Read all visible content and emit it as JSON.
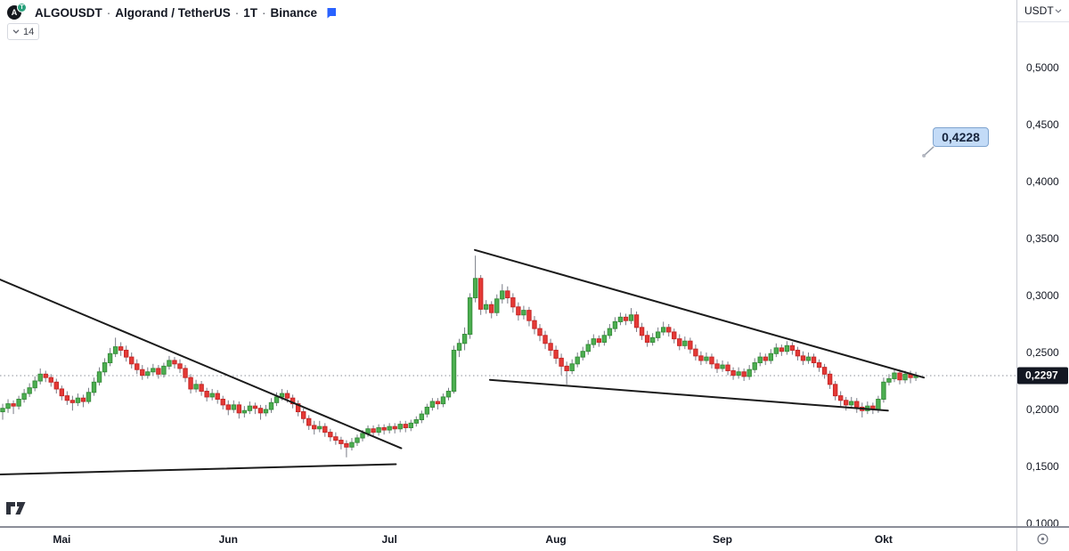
{
  "header": {
    "symbol": "ALGOUSDT",
    "separator": "·",
    "name": "Algorand / TetherUS",
    "interval": "1T",
    "exchange": "Binance",
    "indicator_chip_value": "14",
    "logo_base_letter": "A",
    "logo_badge_letter": "T"
  },
  "price_axis": {
    "currency_button": "USDT",
    "ticks": [
      {
        "label": "0,5000",
        "value": 0.5
      },
      {
        "label": "0,4500",
        "value": 0.45
      },
      {
        "label": "0,4000",
        "value": 0.4
      },
      {
        "label": "0,3500",
        "value": 0.35
      },
      {
        "label": "0,3000",
        "value": 0.3
      },
      {
        "label": "0,2500",
        "value": 0.25
      },
      {
        "label": "0,2000",
        "value": 0.2
      },
      {
        "label": "0,1500",
        "value": 0.15
      },
      {
        "label": "0,1000",
        "value": 0.1
      }
    ],
    "last_price": {
      "label": "0,2297",
      "value": 0.2297
    }
  },
  "time_axis": {
    "months": [
      {
        "label": "Mai",
        "index": 11
      },
      {
        "label": "Jun",
        "index": 42
      },
      {
        "label": "Jul",
        "index": 72
      },
      {
        "label": "Aug",
        "index": 103
      },
      {
        "label": "Sep",
        "index": 134
      },
      {
        "label": "Okt",
        "index": 164
      }
    ]
  },
  "callout": {
    "label": "0,4228",
    "value": 0.4228,
    "anchor_index": 171.5
  },
  "colors": {
    "up_fill": "#4caf50",
    "up_border": "#388e3c",
    "down_fill": "#e53935",
    "down_border": "#c62828",
    "wick": "#787b86",
    "trendline": "#1b1b1b",
    "dotted_line": "#8b8f99",
    "accent_flag": "#2962ff",
    "last_price_bg": "#131722",
    "callout_bg": "#c3dbf7"
  },
  "chart_data": {
    "type": "candlestick",
    "title": "ALGOUSDT · Algorand / TetherUS · 1T · Binance",
    "interval": "1T (daily)",
    "visible_price_range": [
      0.098,
      0.559
    ],
    "grid": false,
    "last_close": 0.2297,
    "dotted_price_line": 0.2297,
    "candles": [
      [
        0.198,
        0.205,
        0.191,
        0.201
      ],
      [
        0.201,
        0.209,
        0.197,
        0.205
      ],
      [
        0.205,
        0.208,
        0.196,
        0.203
      ],
      [
        0.203,
        0.212,
        0.2,
        0.209
      ],
      [
        0.209,
        0.218,
        0.206,
        0.214
      ],
      [
        0.214,
        0.223,
        0.211,
        0.219
      ],
      [
        0.219,
        0.229,
        0.216,
        0.225
      ],
      [
        0.225,
        0.236,
        0.222,
        0.231
      ],
      [
        0.231,
        0.234,
        0.224,
        0.228
      ],
      [
        0.228,
        0.231,
        0.22,
        0.224
      ],
      [
        0.224,
        0.227,
        0.214,
        0.218
      ],
      [
        0.218,
        0.221,
        0.208,
        0.212
      ],
      [
        0.212,
        0.216,
        0.204,
        0.208
      ],
      [
        0.208,
        0.212,
        0.199,
        0.206
      ],
      [
        0.206,
        0.214,
        0.203,
        0.21
      ],
      [
        0.21,
        0.213,
        0.202,
        0.207
      ],
      [
        0.207,
        0.219,
        0.205,
        0.215
      ],
      [
        0.215,
        0.228,
        0.212,
        0.224
      ],
      [
        0.224,
        0.237,
        0.221,
        0.233
      ],
      [
        0.233,
        0.245,
        0.23,
        0.241
      ],
      [
        0.241,
        0.254,
        0.238,
        0.249
      ],
      [
        0.249,
        0.263,
        0.246,
        0.255
      ],
      [
        0.255,
        0.259,
        0.247,
        0.252
      ],
      [
        0.252,
        0.256,
        0.242,
        0.246
      ],
      [
        0.246,
        0.25,
        0.236,
        0.24
      ],
      [
        0.24,
        0.244,
        0.231,
        0.235
      ],
      [
        0.235,
        0.239,
        0.226,
        0.23
      ],
      [
        0.23,
        0.237,
        0.227,
        0.233
      ],
      [
        0.233,
        0.24,
        0.23,
        0.236
      ],
      [
        0.236,
        0.239,
        0.227,
        0.231
      ],
      [
        0.231,
        0.241,
        0.228,
        0.238
      ],
      [
        0.238,
        0.247,
        0.235,
        0.243
      ],
      [
        0.243,
        0.246,
        0.236,
        0.24
      ],
      [
        0.24,
        0.244,
        0.232,
        0.236
      ],
      [
        0.236,
        0.239,
        0.224,
        0.228
      ],
      [
        0.228,
        0.231,
        0.214,
        0.218
      ],
      [
        0.218,
        0.226,
        0.215,
        0.222
      ],
      [
        0.222,
        0.225,
        0.212,
        0.216
      ],
      [
        0.216,
        0.219,
        0.207,
        0.211
      ],
      [
        0.211,
        0.218,
        0.208,
        0.214
      ],
      [
        0.214,
        0.217,
        0.205,
        0.209
      ],
      [
        0.209,
        0.212,
        0.2,
        0.204
      ],
      [
        0.204,
        0.208,
        0.195,
        0.2
      ],
      [
        0.2,
        0.208,
        0.197,
        0.204
      ],
      [
        0.204,
        0.207,
        0.192,
        0.197
      ],
      [
        0.197,
        0.203,
        0.193,
        0.199
      ],
      [
        0.199,
        0.207,
        0.196,
        0.203
      ],
      [
        0.203,
        0.206,
        0.196,
        0.201
      ],
      [
        0.201,
        0.204,
        0.191,
        0.197
      ],
      [
        0.197,
        0.204,
        0.194,
        0.2
      ],
      [
        0.2,
        0.21,
        0.197,
        0.206
      ],
      [
        0.206,
        0.215,
        0.203,
        0.211
      ],
      [
        0.211,
        0.218,
        0.208,
        0.214
      ],
      [
        0.214,
        0.217,
        0.206,
        0.21
      ],
      [
        0.21,
        0.213,
        0.201,
        0.205
      ],
      [
        0.205,
        0.208,
        0.194,
        0.198
      ],
      [
        0.198,
        0.201,
        0.188,
        0.192
      ],
      [
        0.192,
        0.195,
        0.182,
        0.186
      ],
      [
        0.186,
        0.19,
        0.178,
        0.183
      ],
      [
        0.183,
        0.19,
        0.18,
        0.185
      ],
      [
        0.185,
        0.188,
        0.176,
        0.18
      ],
      [
        0.18,
        0.183,
        0.172,
        0.176
      ],
      [
        0.176,
        0.18,
        0.169,
        0.173
      ],
      [
        0.173,
        0.176,
        0.165,
        0.17
      ],
      [
        0.17,
        0.173,
        0.158,
        0.167
      ],
      [
        0.167,
        0.175,
        0.164,
        0.171
      ],
      [
        0.171,
        0.178,
        0.168,
        0.175
      ],
      [
        0.175,
        0.182,
        0.172,
        0.179
      ],
      [
        0.179,
        0.186,
        0.176,
        0.183
      ],
      [
        0.183,
        0.186,
        0.176,
        0.18
      ],
      [
        0.18,
        0.187,
        0.177,
        0.184
      ],
      [
        0.184,
        0.187,
        0.178,
        0.182
      ],
      [
        0.182,
        0.188,
        0.179,
        0.185
      ],
      [
        0.185,
        0.188,
        0.179,
        0.183
      ],
      [
        0.183,
        0.19,
        0.18,
        0.187
      ],
      [
        0.187,
        0.19,
        0.18,
        0.184
      ],
      [
        0.184,
        0.191,
        0.181,
        0.188
      ],
      [
        0.188,
        0.194,
        0.185,
        0.191
      ],
      [
        0.191,
        0.199,
        0.188,
        0.196
      ],
      [
        0.196,
        0.205,
        0.193,
        0.202
      ],
      [
        0.202,
        0.21,
        0.199,
        0.207
      ],
      [
        0.207,
        0.21,
        0.2,
        0.205
      ],
      [
        0.205,
        0.214,
        0.202,
        0.211
      ],
      [
        0.211,
        0.219,
        0.208,
        0.216
      ],
      [
        0.216,
        0.256,
        0.214,
        0.252
      ],
      [
        0.252,
        0.262,
        0.246,
        0.258
      ],
      [
        0.258,
        0.272,
        0.252,
        0.266
      ],
      [
        0.266,
        0.302,
        0.262,
        0.298
      ],
      [
        0.298,
        0.335,
        0.294,
        0.315
      ],
      [
        0.315,
        0.318,
        0.283,
        0.288
      ],
      [
        0.288,
        0.296,
        0.284,
        0.292
      ],
      [
        0.292,
        0.295,
        0.28,
        0.285
      ],
      [
        0.285,
        0.301,
        0.282,
        0.297
      ],
      [
        0.297,
        0.31,
        0.293,
        0.304
      ],
      [
        0.304,
        0.308,
        0.293,
        0.298
      ],
      [
        0.298,
        0.302,
        0.285,
        0.29
      ],
      [
        0.29,
        0.294,
        0.278,
        0.283
      ],
      [
        0.283,
        0.291,
        0.279,
        0.287
      ],
      [
        0.287,
        0.29,
        0.273,
        0.278
      ],
      [
        0.278,
        0.282,
        0.266,
        0.271
      ],
      [
        0.271,
        0.275,
        0.26,
        0.265
      ],
      [
        0.265,
        0.269,
        0.253,
        0.258
      ],
      [
        0.258,
        0.262,
        0.247,
        0.252
      ],
      [
        0.252,
        0.256,
        0.24,
        0.245
      ],
      [
        0.245,
        0.249,
        0.23,
        0.238
      ],
      [
        0.238,
        0.242,
        0.222,
        0.234
      ],
      [
        0.234,
        0.244,
        0.231,
        0.24
      ],
      [
        0.24,
        0.25,
        0.237,
        0.246
      ],
      [
        0.246,
        0.255,
        0.243,
        0.251
      ],
      [
        0.251,
        0.261,
        0.248,
        0.257
      ],
      [
        0.257,
        0.266,
        0.254,
        0.262
      ],
      [
        0.262,
        0.265,
        0.255,
        0.259
      ],
      [
        0.259,
        0.269,
        0.256,
        0.265
      ],
      [
        0.265,
        0.275,
        0.262,
        0.271
      ],
      [
        0.271,
        0.281,
        0.268,
        0.277
      ],
      [
        0.277,
        0.285,
        0.274,
        0.281
      ],
      [
        0.281,
        0.284,
        0.274,
        0.278
      ],
      [
        0.278,
        0.289,
        0.275,
        0.283
      ],
      [
        0.283,
        0.286,
        0.268,
        0.272
      ],
      [
        0.272,
        0.276,
        0.261,
        0.265
      ],
      [
        0.265,
        0.269,
        0.255,
        0.259
      ],
      [
        0.259,
        0.267,
        0.256,
        0.263
      ],
      [
        0.263,
        0.272,
        0.26,
        0.268
      ],
      [
        0.268,
        0.277,
        0.265,
        0.272
      ],
      [
        0.272,
        0.275,
        0.264,
        0.268
      ],
      [
        0.268,
        0.271,
        0.258,
        0.262
      ],
      [
        0.262,
        0.266,
        0.252,
        0.256
      ],
      [
        0.256,
        0.264,
        0.253,
        0.26
      ],
      [
        0.26,
        0.263,
        0.249,
        0.253
      ],
      [
        0.253,
        0.257,
        0.243,
        0.247
      ],
      [
        0.247,
        0.251,
        0.239,
        0.243
      ],
      [
        0.243,
        0.25,
        0.24,
        0.246
      ],
      [
        0.246,
        0.249,
        0.236,
        0.24
      ],
      [
        0.24,
        0.244,
        0.232,
        0.236
      ],
      [
        0.236,
        0.243,
        0.233,
        0.239
      ],
      [
        0.239,
        0.242,
        0.23,
        0.234
      ],
      [
        0.234,
        0.237,
        0.226,
        0.23
      ],
      [
        0.23,
        0.237,
        0.227,
        0.233
      ],
      [
        0.233,
        0.236,
        0.225,
        0.229
      ],
      [
        0.229,
        0.239,
        0.226,
        0.235
      ],
      [
        0.235,
        0.245,
        0.232,
        0.241
      ],
      [
        0.241,
        0.25,
        0.238,
        0.246
      ],
      [
        0.246,
        0.249,
        0.239,
        0.243
      ],
      [
        0.243,
        0.253,
        0.24,
        0.249
      ],
      [
        0.249,
        0.258,
        0.246,
        0.254
      ],
      [
        0.254,
        0.257,
        0.247,
        0.251
      ],
      [
        0.251,
        0.26,
        0.248,
        0.256
      ],
      [
        0.256,
        0.259,
        0.248,
        0.252
      ],
      [
        0.252,
        0.255,
        0.243,
        0.247
      ],
      [
        0.247,
        0.251,
        0.239,
        0.243
      ],
      [
        0.243,
        0.25,
        0.24,
        0.246
      ],
      [
        0.246,
        0.249,
        0.237,
        0.241
      ],
      [
        0.241,
        0.244,
        0.233,
        0.237
      ],
      [
        0.237,
        0.24,
        0.227,
        0.231
      ],
      [
        0.231,
        0.234,
        0.218,
        0.222
      ],
      [
        0.222,
        0.225,
        0.208,
        0.212
      ],
      [
        0.212,
        0.216,
        0.203,
        0.208
      ],
      [
        0.208,
        0.211,
        0.199,
        0.204
      ],
      [
        0.204,
        0.211,
        0.201,
        0.207
      ],
      [
        0.207,
        0.21,
        0.197,
        0.202
      ],
      [
        0.202,
        0.206,
        0.193,
        0.199
      ],
      [
        0.199,
        0.207,
        0.196,
        0.203
      ],
      [
        0.203,
        0.206,
        0.196,
        0.2
      ],
      [
        0.2,
        0.212,
        0.197,
        0.209
      ],
      [
        0.209,
        0.228,
        0.206,
        0.224
      ],
      [
        0.224,
        0.231,
        0.221,
        0.227
      ],
      [
        0.227,
        0.236,
        0.224,
        0.232
      ],
      [
        0.232,
        0.235,
        0.222,
        0.226
      ],
      [
        0.226,
        0.234,
        0.223,
        0.231
      ],
      [
        0.231,
        0.234,
        0.223,
        0.228
      ],
      [
        0.228,
        0.233,
        0.225,
        0.2297
      ]
    ],
    "trendlines": [
      {
        "i1": -0.5,
        "p1": 0.314,
        "i2": 74.2,
        "p2": 0.166
      },
      {
        "i1": -0.5,
        "p1": 0.143,
        "i2": 73.2,
        "p2": 0.152
      },
      {
        "i1": 87.9,
        "p1": 0.34,
        "i2": 171.5,
        "p2": 0.228
      },
      {
        "i1": 90.7,
        "p1": 0.226,
        "i2": 164.8,
        "p2": 0.199
      }
    ]
  }
}
